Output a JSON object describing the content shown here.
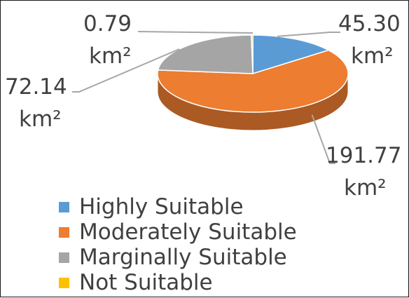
{
  "chart_data": {
    "type": "pie",
    "style": "3d",
    "unit": "km²",
    "categories": [
      "Highly Suitable",
      "Moderately Suitable",
      "Marginally Suitable",
      "Not Suitable"
    ],
    "values": [
      45.3,
      191.77,
      72.14,
      0.79
    ],
    "value_labels": [
      "45.30",
      "191.77",
      "72.14",
      "0.79"
    ],
    "colors": [
      "#5b9bd5",
      "#ed7d31",
      "#a5a5a5",
      "#ffc000"
    ],
    "legend_placement": "bottom-left"
  }
}
